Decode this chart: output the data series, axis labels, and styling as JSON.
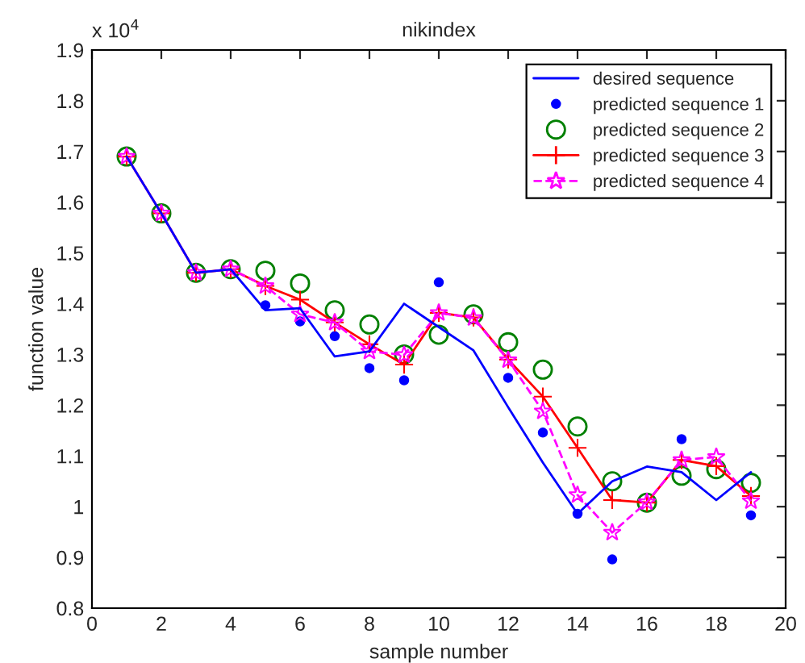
{
  "chart_data": {
    "type": "line",
    "title": "nikindex",
    "xlabel": "sample number",
    "ylabel": "function value",
    "annotations": [
      "x 10$^{4}$"
    ],
    "x": [
      1,
      2,
      3,
      4,
      5,
      6,
      7,
      8,
      9,
      10,
      11,
      12,
      13,
      14,
      15,
      16,
      17,
      18,
      19
    ],
    "series": [
      {
        "name": "desired sequence",
        "color": "#0000ff",
        "marker": "none",
        "line_style": "solid",
        "values": [
          1.69,
          1.578,
          1.461,
          1.468,
          1.387,
          1.391,
          1.296,
          1.306,
          1.4,
          1.354,
          1.308,
          1.196,
          1.087,
          0.986,
          1.05,
          1.079,
          1.068,
          1.013,
          1.068
        ]
      },
      {
        "name": "predicted sequence 1",
        "type": "scatter",
        "color": "#0000ff",
        "marker": "circle",
        "values": [
          null,
          null,
          null,
          null,
          1.397,
          1.365,
          1.336,
          1.273,
          1.249,
          1.442,
          null,
          1.254,
          1.146,
          0.986,
          0.896,
          null,
          1.133,
          null,
          0.983
        ]
      },
      {
        "name": "predicted sequence 2",
        "type": "scatter",
        "color": "#008000",
        "marker": "circle",
        "values": [
          1.69,
          1.578,
          1.461,
          1.468,
          1.465,
          1.44,
          1.387,
          1.359,
          1.3,
          1.339,
          1.379,
          1.324,
          1.27,
          1.158,
          1.05,
          1.008,
          1.061,
          1.074,
          1.047
        ]
      },
      {
        "name": "predicted sequence 3",
        "color": "#ff0000",
        "marker": "cross",
        "line_style": "solid",
        "values": [
          1.69,
          1.578,
          1.461,
          1.468,
          1.435,
          1.408,
          1.363,
          1.32,
          1.28,
          1.382,
          1.373,
          1.29,
          1.217,
          1.116,
          1.013,
          1.008,
          1.092,
          1.08,
          1.021
        ]
      },
      {
        "name": "predicted sequence 4",
        "color": "#ff00ff",
        "marker": "star",
        "line_style": "dashed",
        "values": [
          1.69,
          1.578,
          1.461,
          1.468,
          1.435,
          1.379,
          1.363,
          1.306,
          1.299,
          1.382,
          1.372,
          1.289,
          1.188,
          1.023,
          0.949,
          1.009,
          1.092,
          1.098,
          1.011
        ]
      }
    ],
    "xlim": [
      0,
      20
    ],
    "xticks": [
      0,
      2,
      4,
      6,
      8,
      10,
      12,
      14,
      16,
      18,
      20
    ],
    "ylim": [
      0.8,
      1.9
    ],
    "yticks": [
      0.8,
      0.9,
      1,
      1.1,
      1.2,
      1.3,
      1.4,
      1.5,
      1.6,
      1.7,
      1.8,
      1.9
    ],
    "legend": "top right",
    "grid": false
  }
}
